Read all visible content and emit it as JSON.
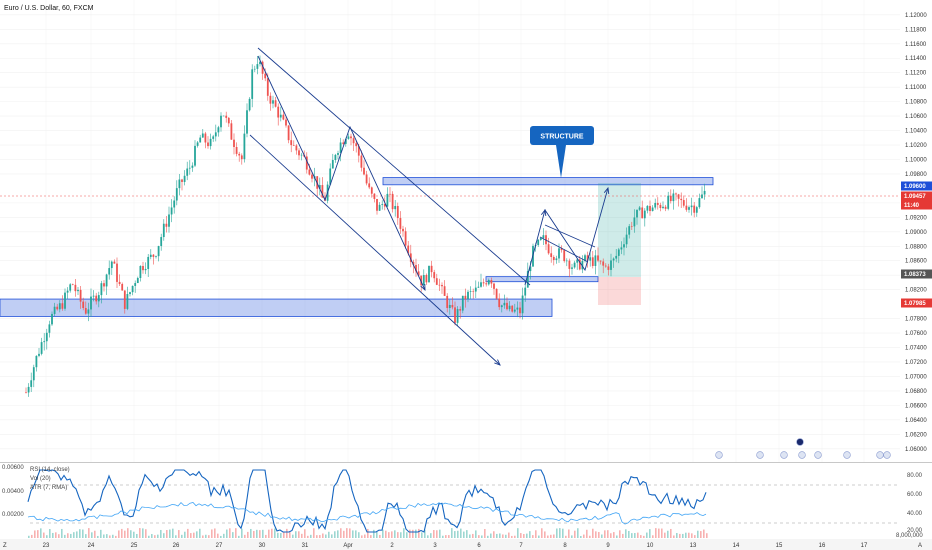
{
  "header": {
    "title": "Euro / U.S. Dollar, 60, FXCM"
  },
  "annotations": {
    "structure_label": "STRUCTURE"
  },
  "price_tags": [
    {
      "value": "1.09600",
      "color": "#1e4fd8"
    },
    {
      "value": "1.09457",
      "color": "#e53935"
    },
    {
      "value": "11:40",
      "color": "#e53935"
    },
    {
      "value": "1.08373",
      "color": "#555555"
    },
    {
      "value": "1.07985",
      "color": "#e53935"
    }
  ],
  "indicator": {
    "labels": [
      "RSI (14, close)",
      "Vol (20)",
      "ATR (7, RMA)"
    ],
    "left_ticks": [
      "0.00600",
      "0.00400",
      "0.00200"
    ],
    "right_ticks": [
      "80.00",
      "60.00",
      "40.00",
      "20.00"
    ],
    "bottom_label": "8,000,000"
  },
  "bottom_bar": {
    "left_label": "Z",
    "right_label": "A"
  },
  "colors": {
    "up": "#26a69a",
    "down": "#ef5350",
    "zone": "#1e4fd8",
    "rsi": "#1565c0",
    "atr": "#42a5f5",
    "badge": "#1565c0"
  },
  "chart_data": {
    "type": "candlestick",
    "title": "Euro / U.S. Dollar, 60, FXCM",
    "xlabel": "",
    "ylabel": "",
    "ylim": [
      1.059,
      1.1215
    ],
    "x_ticks": [
      "23",
      "24",
      "25",
      "26",
      "27",
      "30",
      "31",
      "Apr",
      "2",
      "3",
      "6",
      "7",
      "8",
      "9",
      "10",
      "13",
      "14",
      "15",
      "16",
      "17"
    ],
    "y_ticks": [
      "1.12000",
      "1.11800",
      "1.11600",
      "1.11400",
      "1.11200",
      "1.11000",
      "1.10800",
      "1.10600",
      "1.10400",
      "1.10200",
      "1.10000",
      "1.09800",
      "1.09400",
      "1.09200",
      "1.09000",
      "1.08800",
      "1.08600",
      "1.08400",
      "1.08200",
      "1.07800",
      "1.07600",
      "1.07400",
      "1.07200",
      "1.07000",
      "1.06800",
      "1.06600",
      "1.06400",
      "1.06200",
      "1.06000"
    ],
    "price_path": [
      [
        0,
        1.071
      ],
      [
        10,
        1.068
      ],
      [
        20,
        1.065
      ],
      [
        35,
        1.072
      ],
      [
        50,
        1.078
      ],
      [
        62,
        1.08
      ],
      [
        72,
        1.083
      ],
      [
        85,
        1.079
      ],
      [
        100,
        1.082
      ],
      [
        112,
        1.086
      ],
      [
        125,
        1.08
      ],
      [
        140,
        1.085
      ],
      [
        155,
        1.087
      ],
      [
        168,
        1.092
      ],
      [
        178,
        1.096
      ],
      [
        190,
        1.099
      ],
      [
        200,
        1.103
      ],
      [
        212,
        1.102
      ],
      [
        222,
        1.107
      ],
      [
        232,
        1.103
      ],
      [
        242,
        1.1
      ],
      [
        252,
        1.112
      ],
      [
        258,
        1.114
      ],
      [
        268,
        1.109
      ],
      [
        280,
        1.106
      ],
      [
        292,
        1.102
      ],
      [
        305,
        1.1
      ],
      [
        316,
        1.097
      ],
      [
        324,
        1.094
      ],
      [
        335,
        1.101
      ],
      [
        348,
        1.104
      ],
      [
        358,
        1.101
      ],
      [
        368,
        1.096
      ],
      [
        378,
        1.093
      ],
      [
        388,
        1.095
      ],
      [
        398,
        1.092
      ],
      [
        410,
        1.087
      ],
      [
        422,
        1.083
      ],
      [
        432,
        1.085
      ],
      [
        444,
        1.081
      ],
      [
        455,
        1.078
      ],
      [
        465,
        1.081
      ],
      [
        478,
        1.082
      ],
      [
        490,
        1.084
      ],
      [
        500,
        1.08
      ],
      [
        510,
        1.079
      ],
      [
        520,
        1.079
      ],
      [
        532,
        1.087
      ],
      [
        543,
        1.089
      ],
      [
        552,
        1.087
      ],
      [
        562,
        1.087
      ],
      [
        574,
        1.085
      ],
      [
        584,
        1.086
      ],
      [
        595,
        1.086
      ],
      [
        605,
        1.085
      ],
      [
        614,
        1.086
      ],
      [
        624,
        1.089
      ],
      [
        634,
        1.092
      ],
      [
        645,
        1.093
      ],
      [
        655,
        1.0935
      ],
      [
        665,
        1.094
      ],
      [
        675,
        1.0945
      ],
      [
        685,
        1.0938
      ],
      [
        695,
        1.0935
      ],
      [
        705,
        1.0955
      ]
    ],
    "zones": [
      {
        "y1": 1.0975,
        "y2": 1.0965,
        "x1": 383,
        "x2": 713
      },
      {
        "y1": 1.0807,
        "y2": 1.0783,
        "x1": 0,
        "x2": 552
      },
      {
        "y1": 1.0838,
        "y2": 1.0831,
        "x1": 486,
        "x2": 598
      }
    ]
  }
}
